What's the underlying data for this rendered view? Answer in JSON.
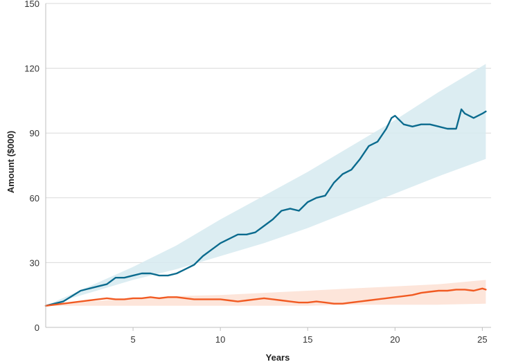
{
  "chart_data": {
    "type": "line",
    "title": "",
    "xlabel": "Years",
    "ylabel": "Amount ($000)",
    "xlim": [
      0,
      25.5
    ],
    "ylim": [
      0,
      150
    ],
    "x_ticks": [
      5,
      10,
      15,
      20,
      25
    ],
    "y_ticks": [
      0,
      30,
      60,
      90,
      120,
      150
    ],
    "grid": "horizontal",
    "legend": "none",
    "colors": {
      "series_a": "#0b6b8e",
      "band_a": "#d6eaf0",
      "series_b": "#f15a22",
      "band_b": "#fde0d4",
      "grid": "#d9d9d9",
      "axis": "#bfbfbf"
    },
    "series": [
      {
        "x": [
          0,
          1,
          2,
          2.5,
          3,
          3.5,
          4,
          4.5,
          5,
          5.5,
          6,
          6.5,
          7,
          7.5,
          8,
          8.5,
          9,
          9.5,
          10,
          10.5,
          11,
          11.5,
          12,
          12.5,
          13,
          13.5,
          14,
          14.5,
          15,
          15.5,
          16,
          16.5,
          17,
          17.5,
          18,
          18.5,
          19,
          19.5,
          19.8,
          20,
          20.5,
          21,
          21.5,
          22,
          22.5,
          23,
          23.5,
          23.8,
          24,
          24.5,
          25,
          25.2
        ],
        "y": [
          10,
          12,
          17,
          18,
          19,
          20,
          23,
          23,
          24,
          25,
          25,
          24,
          24,
          25,
          27,
          29,
          33,
          36,
          39,
          41,
          43,
          43,
          44,
          47,
          50,
          54,
          55,
          54,
          58,
          60,
          61,
          67,
          71,
          73,
          78,
          84,
          86,
          92,
          97,
          98,
          94,
          93,
          94,
          94,
          93,
          92,
          92,
          101,
          99,
          97,
          99,
          100
        ]
      },
      {
        "x": [
          0,
          1,
          2,
          2.5,
          3,
          3.5,
          4,
          4.5,
          5,
          5.5,
          6,
          6.5,
          7,
          7.5,
          8,
          8.5,
          9,
          9.5,
          10,
          10.5,
          11,
          11.5,
          12,
          12.5,
          13,
          13.5,
          14,
          14.5,
          15,
          15.5,
          16,
          16.5,
          17,
          17.5,
          18,
          18.5,
          19,
          19.5,
          20,
          20.5,
          21,
          21.5,
          22,
          22.5,
          23,
          23.5,
          24,
          24.5,
          25,
          25.2
        ],
        "y": [
          10,
          11,
          12,
          12.5,
          13,
          13.5,
          13,
          13,
          13.5,
          13.5,
          14,
          13.5,
          14,
          14,
          13.5,
          13,
          13,
          13,
          13,
          12.5,
          12,
          12.5,
          13,
          13.5,
          13,
          12.5,
          12,
          11.5,
          11.5,
          12,
          11.5,
          11,
          11,
          11.5,
          12,
          12.5,
          13,
          13.5,
          14,
          14.5,
          15,
          16,
          16.5,
          17,
          17,
          17.5,
          17.5,
          17,
          18,
          17.5
        ]
      }
    ],
    "bands": [
      {
        "x": [
          0,
          2.5,
          5,
          7.5,
          10,
          12.5,
          15,
          17.5,
          20,
          22.5,
          25.2
        ],
        "upper": [
          10,
          19,
          28,
          38,
          50,
          61,
          72,
          84,
          96,
          109,
          122
        ],
        "lower": [
          10,
          16,
          22,
          27,
          33,
          39,
          46,
          54,
          62,
          70,
          78
        ]
      },
      {
        "x": [
          0,
          2.5,
          5,
          7.5,
          10,
          12.5,
          15,
          17.5,
          20,
          22.5,
          25.2
        ],
        "upper": [
          10,
          12,
          13.5,
          14.5,
          15,
          16,
          17,
          18,
          19,
          20,
          22
        ],
        "lower": [
          10,
          10,
          10,
          10,
          10,
          10,
          10,
          10.5,
          10.5,
          10.5,
          11
        ]
      }
    ]
  }
}
